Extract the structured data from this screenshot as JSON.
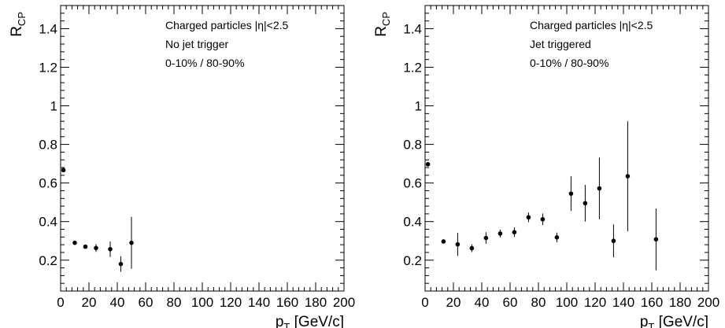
{
  "chart_data": [
    {
      "type": "scatter",
      "panel": "left",
      "xlabel_main": "p",
      "xlabel_sub": "T",
      "xlabel_unit": " [GeV/c]",
      "ylabel_main": "R",
      "ylabel_sub": "CP",
      "xlim": [
        0,
        200
      ],
      "ylim": [
        0.04,
        1.52
      ],
      "xticks": [
        0,
        20,
        40,
        60,
        80,
        100,
        120,
        140,
        160,
        180,
        200
      ],
      "yticks": [
        0.2,
        0.4,
        0.6,
        0.8,
        1,
        1.2,
        1.4
      ],
      "ytick_labels": [
        "0.2",
        "0.4",
        "0.6",
        "0.8",
        "1",
        "1.2",
        "1.4"
      ],
      "xtick_labels": [
        "0",
        "20",
        "40",
        "60",
        "80",
        "100",
        "120",
        "140",
        "160",
        "180",
        "200"
      ],
      "annotations": [
        "Charged particles |η|<2.5",
        "No jet trigger",
        "0-10% / 80-90%"
      ],
      "points": [
        {
          "x": 2,
          "y": 0.667,
          "err": 0.0
        },
        {
          "x": 10,
          "y": 0.29,
          "err": 0.005
        },
        {
          "x": 17.5,
          "y": 0.27,
          "err": 0.008
        },
        {
          "x": 25,
          "y": 0.263,
          "err": 0.02
        },
        {
          "x": 35,
          "y": 0.257,
          "err": 0.04
        },
        {
          "x": 42.5,
          "y": 0.18,
          "err": 0.04
        },
        {
          "x": 50,
          "y": 0.29,
          "err": 0.135
        }
      ]
    },
    {
      "type": "scatter",
      "panel": "right",
      "xlabel_main": "p",
      "xlabel_sub": "T",
      "xlabel_unit": " [GeV/c]",
      "ylabel_main": "R",
      "ylabel_sub": "CP",
      "xlim": [
        0,
        200
      ],
      "ylim": [
        0.04,
        1.52
      ],
      "xticks": [
        0,
        20,
        40,
        60,
        80,
        100,
        120,
        140,
        160,
        180,
        200
      ],
      "yticks": [
        0.2,
        0.4,
        0.6,
        0.8,
        1,
        1.2,
        1.4
      ],
      "ytick_labels": [
        "0.2",
        "0.4",
        "0.6",
        "0.8",
        "1",
        "1.2",
        "1.4"
      ],
      "xtick_labels": [
        "0",
        "20",
        "40",
        "60",
        "80",
        "100",
        "120",
        "140",
        "160",
        "180",
        "200"
      ],
      "annotations": [
        "Charged particles |η|<2.5",
        "Jet triggered",
        "0-10% / 80-90%"
      ],
      "points": [
        {
          "x": 2,
          "y": 0.697,
          "err": 0.0
        },
        {
          "x": 13,
          "y": 0.297,
          "err": 0.005
        },
        {
          "x": 23,
          "y": 0.282,
          "err": 0.06
        },
        {
          "x": 33,
          "y": 0.262,
          "err": 0.02
        },
        {
          "x": 43,
          "y": 0.315,
          "err": 0.03
        },
        {
          "x": 53,
          "y": 0.338,
          "err": 0.02
        },
        {
          "x": 63,
          "y": 0.345,
          "err": 0.025
        },
        {
          "x": 73,
          "y": 0.422,
          "err": 0.025
        },
        {
          "x": 83,
          "y": 0.412,
          "err": 0.03
        },
        {
          "x": 93,
          "y": 0.318,
          "err": 0.025
        },
        {
          "x": 103,
          "y": 0.545,
          "err": 0.09
        },
        {
          "x": 113,
          "y": 0.495,
          "err": 0.095
        },
        {
          "x": 123,
          "y": 0.572,
          "err": 0.16
        },
        {
          "x": 133,
          "y": 0.3,
          "err": 0.085
        },
        {
          "x": 143,
          "y": 0.635,
          "err": 0.285
        },
        {
          "x": 163,
          "y": 0.308,
          "err": 0.16
        }
      ]
    }
  ]
}
